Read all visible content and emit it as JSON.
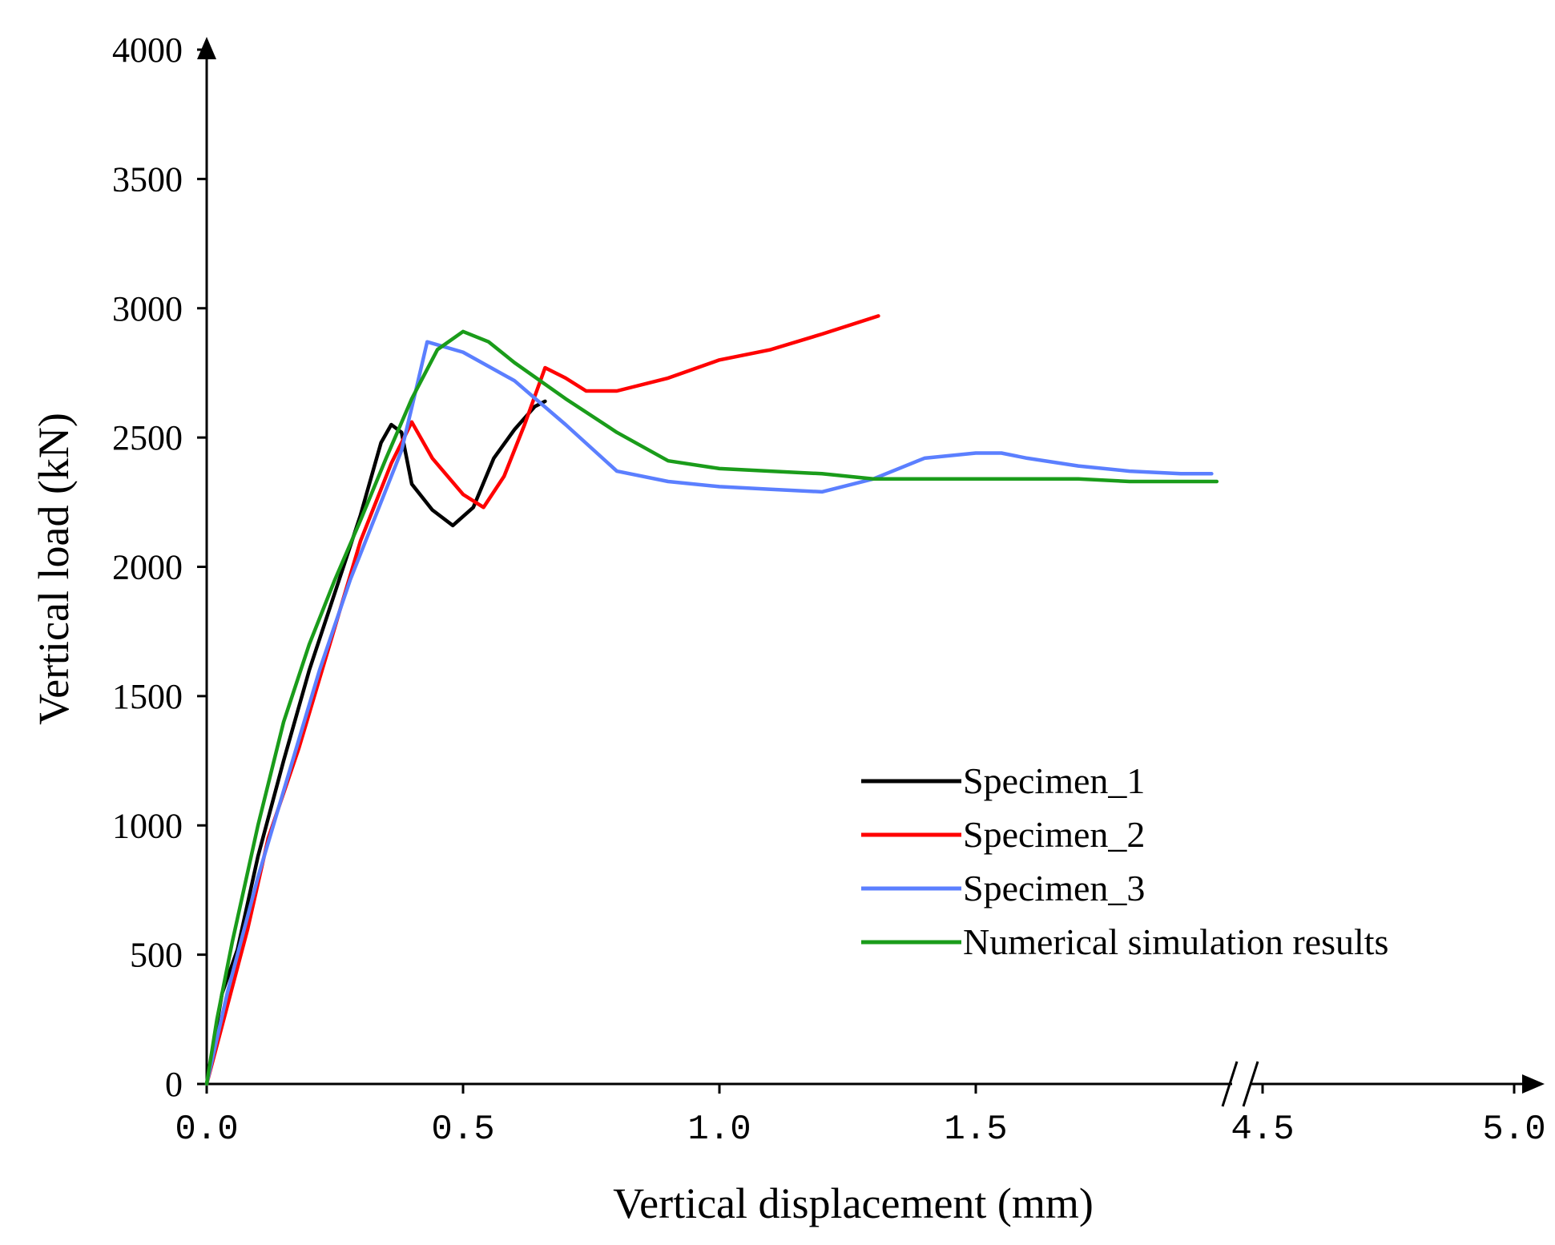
{
  "chart_data": {
    "type": "line",
    "title": "",
    "xlabel": "Vertical displacement (mm)",
    "ylabel": "Vertical load (kN)",
    "ylim": [
      0,
      4000
    ],
    "x_axis_break": {
      "left_segment": [
        0.0,
        2.0
      ],
      "right_segment": [
        4.5,
        5.0
      ]
    },
    "x_ticks": [
      "0.0",
      "0.5",
      "1.0",
      "1.5",
      "4.5",
      "5.0"
    ],
    "y_ticks": [
      "0",
      "500",
      "1000",
      "1500",
      "2000",
      "2500",
      "3000",
      "3500",
      "4000"
    ],
    "legend_position": "center-right",
    "grid": false,
    "series": [
      {
        "name": "Specimen_1",
        "color": "#000000",
        "points": [
          [
            0.0,
            0
          ],
          [
            0.03,
            350
          ],
          [
            0.06,
            520
          ],
          [
            0.1,
            880
          ],
          [
            0.15,
            1250
          ],
          [
            0.2,
            1600
          ],
          [
            0.25,
            1900
          ],
          [
            0.3,
            2200
          ],
          [
            0.34,
            2480
          ],
          [
            0.36,
            2550
          ],
          [
            0.38,
            2520
          ],
          [
            0.4,
            2320
          ],
          [
            0.44,
            2220
          ],
          [
            0.48,
            2160
          ],
          [
            0.52,
            2230
          ],
          [
            0.56,
            2420
          ],
          [
            0.6,
            2530
          ],
          [
            0.64,
            2620
          ],
          [
            0.66,
            2640
          ]
        ]
      },
      {
        "name": "Specimen_2",
        "color": "#ff0000",
        "points": [
          [
            0.0,
            0
          ],
          [
            0.04,
            300
          ],
          [
            0.08,
            600
          ],
          [
            0.12,
            950
          ],
          [
            0.18,
            1300
          ],
          [
            0.24,
            1700
          ],
          [
            0.3,
            2100
          ],
          [
            0.36,
            2400
          ],
          [
            0.4,
            2560
          ],
          [
            0.44,
            2420
          ],
          [
            0.5,
            2280
          ],
          [
            0.54,
            2230
          ],
          [
            0.58,
            2350
          ],
          [
            0.62,
            2550
          ],
          [
            0.66,
            2770
          ],
          [
            0.7,
            2730
          ],
          [
            0.74,
            2680
          ],
          [
            0.8,
            2680
          ],
          [
            0.9,
            2730
          ],
          [
            1.0,
            2800
          ],
          [
            1.1,
            2840
          ],
          [
            1.2,
            2900
          ],
          [
            1.31,
            2970
          ]
        ]
      },
      {
        "name": "Specimen_3",
        "color": "#5b7fff",
        "points": [
          [
            0.0,
            0
          ],
          [
            0.04,
            350
          ],
          [
            0.1,
            800
          ],
          [
            0.16,
            1200
          ],
          [
            0.22,
            1600
          ],
          [
            0.28,
            1950
          ],
          [
            0.34,
            2250
          ],
          [
            0.38,
            2450
          ],
          [
            0.41,
            2700
          ],
          [
            0.43,
            2870
          ],
          [
            0.5,
            2830
          ],
          [
            0.6,
            2720
          ],
          [
            0.7,
            2550
          ],
          [
            0.8,
            2370
          ],
          [
            0.9,
            2330
          ],
          [
            1.0,
            2310
          ],
          [
            1.1,
            2300
          ],
          [
            1.2,
            2290
          ],
          [
            1.3,
            2340
          ],
          [
            1.4,
            2420
          ],
          [
            1.5,
            2440
          ],
          [
            1.55,
            2440
          ],
          [
            1.6,
            2420
          ],
          [
            1.7,
            2390
          ],
          [
            1.8,
            2370
          ],
          [
            1.9,
            2360
          ],
          [
            1.96,
            2360
          ]
        ]
      },
      {
        "name": "Numerical simulation results",
        "color": "#1a9c1a",
        "points": [
          [
            0.0,
            0
          ],
          [
            0.02,
            250
          ],
          [
            0.05,
            550
          ],
          [
            0.1,
            1000
          ],
          [
            0.15,
            1400
          ],
          [
            0.2,
            1700
          ],
          [
            0.25,
            1950
          ],
          [
            0.3,
            2180
          ],
          [
            0.35,
            2420
          ],
          [
            0.4,
            2650
          ],
          [
            0.45,
            2840
          ],
          [
            0.5,
            2910
          ],
          [
            0.55,
            2870
          ],
          [
            0.6,
            2790
          ],
          [
            0.7,
            2650
          ],
          [
            0.8,
            2520
          ],
          [
            0.9,
            2410
          ],
          [
            1.0,
            2380
          ],
          [
            1.1,
            2370
          ],
          [
            1.2,
            2360
          ],
          [
            1.3,
            2340
          ],
          [
            1.5,
            2340
          ],
          [
            1.7,
            2340
          ],
          [
            1.8,
            2330
          ],
          [
            1.97,
            2330
          ]
        ]
      }
    ]
  }
}
